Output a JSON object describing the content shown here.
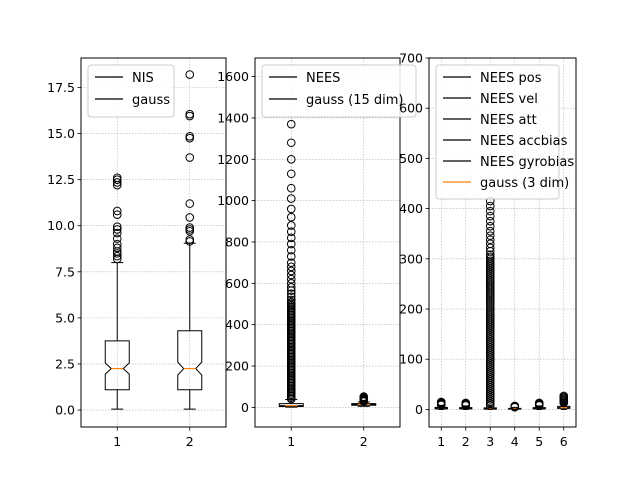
{
  "chart_data": [
    {
      "type": "box",
      "categories": [
        "1",
        "2"
      ],
      "ylim": [
        -0.92,
        19.1
      ],
      "yticks": [
        0.0,
        2.5,
        5.0,
        7.5,
        10.0,
        12.5,
        15.0,
        17.5
      ],
      "ytick_labels": [
        "0.0",
        "2.5",
        "5.0",
        "7.5",
        "10.0",
        "12.5",
        "15.0",
        "17.5"
      ],
      "grid": true,
      "notched": true,
      "legend": {
        "position": "top-left",
        "entries": [
          {
            "label": "NIS",
            "color": "#000000"
          },
          {
            "label": "gauss",
            "color": "#000000"
          }
        ]
      },
      "boxes": [
        {
          "category": "1",
          "whisker_low": 0.05,
          "q1": 1.1,
          "median": 2.25,
          "q3": 3.75,
          "whisker_high": 8.0,
          "notch_low": 1.95,
          "notch_high": 2.55,
          "fliers": [
            8.2,
            8.35,
            8.5,
            8.6,
            8.8,
            9.0,
            9.3,
            9.6,
            9.8,
            9.95,
            10.6,
            10.8,
            12.2,
            12.35,
            12.5,
            12.6
          ]
        },
        {
          "category": "2",
          "whisker_low": 0.05,
          "q1": 1.1,
          "median": 2.25,
          "q3": 4.3,
          "whisker_high": 9.05,
          "notch_low": 1.9,
          "notch_high": 2.6,
          "fliers": [
            9.15,
            9.25,
            9.7,
            9.8,
            9.9,
            10.45,
            11.2,
            13.7,
            14.75,
            14.85,
            15.95,
            16.05,
            18.2
          ]
        }
      ]
    },
    {
      "type": "box",
      "categories": [
        "1",
        "2"
      ],
      "ylim": [
        -95,
        1690
      ],
      "yticks": [
        0,
        200,
        400,
        600,
        800,
        1000,
        1200,
        1400,
        1600
      ],
      "ytick_labels": [
        "0",
        "200",
        "400",
        "600",
        "800",
        "1000",
        "1200",
        "1400",
        "1600"
      ],
      "grid": true,
      "notched": true,
      "legend": {
        "position": "top-left",
        "entries": [
          {
            "label": "NEES",
            "color": "#000000"
          },
          {
            "label": "gauss (15 dim)",
            "color": "#000000"
          }
        ]
      },
      "boxes": [
        {
          "category": "1",
          "whisker_low": 1,
          "q1": 4,
          "median": 8,
          "q3": 18,
          "whisker_high": 38,
          "notch_low": 7,
          "notch_high": 9,
          "flier_range": [
            40,
            510
          ],
          "flier_step": 7,
          "fliers": [
            520,
            535,
            550,
            565,
            580,
            600,
            620,
            640,
            660,
            680,
            700,
            730,
            760,
            790,
            820,
            850,
            880,
            920,
            960,
            1010,
            1060,
            1130,
            1200,
            1280,
            1370
          ]
        },
        {
          "category": "2",
          "whisker_low": 5,
          "q1": 10,
          "median": 14,
          "q3": 18,
          "whisker_high": 26,
          "notch_low": 13,
          "notch_high": 15,
          "fliers": [
            28,
            31,
            34,
            37,
            40,
            43,
            46,
            49,
            52
          ]
        }
      ]
    },
    {
      "type": "box",
      "categories": [
        "1",
        "2",
        "3",
        "4",
        "5",
        "6"
      ],
      "ylim": [
        -35,
        700
      ],
      "yticks": [
        0,
        100,
        200,
        300,
        400,
        500,
        600,
        700
      ],
      "ytick_labels": [
        "0",
        "100",
        "200",
        "300",
        "400",
        "500",
        "600",
        "700"
      ],
      "grid": true,
      "notched": true,
      "legend": {
        "position": "top-left",
        "entries": [
          {
            "label": "NEES pos",
            "color": "#000000"
          },
          {
            "label": "NEES vel",
            "color": "#000000"
          },
          {
            "label": "NEES att",
            "color": "#000000"
          },
          {
            "label": "NEES accbias",
            "color": "#000000"
          },
          {
            "label": "NEES gyrobias",
            "color": "#000000"
          },
          {
            "label": "gauss (3 dim)",
            "color": "#ff7f0e"
          }
        ]
      },
      "boxes": [
        {
          "category": "1",
          "whisker_low": 0,
          "q1": 1,
          "median": 2.5,
          "q3": 4,
          "whisker_high": 8,
          "notch_low": 2.2,
          "notch_high": 2.8,
          "fliers": [
            9,
            10,
            11,
            12,
            13,
            14,
            15
          ]
        },
        {
          "category": "2",
          "whisker_low": 0,
          "q1": 1,
          "median": 2,
          "q3": 3.5,
          "whisker_high": 7,
          "notch_low": 1.8,
          "notch_high": 2.2,
          "fliers": [
            8,
            9,
            10,
            11,
            12,
            13
          ]
        },
        {
          "category": "3",
          "whisker_low": 0,
          "q1": 0.5,
          "median": 1.5,
          "q3": 3,
          "whisker_high": 7,
          "notch_low": 1.3,
          "notch_high": 1.7,
          "flier_range": [
            8,
            310
          ],
          "flier_step": 4,
          "fliers": [
            315,
            322,
            330,
            338,
            346,
            355,
            365,
            375,
            385,
            395,
            405,
            415
          ]
        },
        {
          "category": "4",
          "whisker_low": 0,
          "q1": 0.5,
          "median": 1,
          "q3": 2,
          "whisker_high": 4,
          "notch_low": 0.9,
          "notch_high": 1.1,
          "fliers": [
            4.5,
            5,
            6,
            7
          ]
        },
        {
          "category": "5",
          "whisker_low": 0,
          "q1": 1,
          "median": 2,
          "q3": 3.5,
          "whisker_high": 7,
          "notch_low": 1.8,
          "notch_high": 2.2,
          "fliers": [
            8,
            9,
            10,
            11,
            12,
            13
          ]
        },
        {
          "category": "6",
          "whisker_low": 0,
          "q1": 2,
          "median": 3.5,
          "q3": 6,
          "whisker_high": 12,
          "notch_low": 3.2,
          "notch_high": 3.8,
          "fliers": [
            13,
            15,
            17,
            19,
            21,
            23,
            25,
            27
          ]
        }
      ]
    }
  ],
  "colors": {
    "median": "#ff7f0e",
    "box": "#000000",
    "grid": "#b0b0b0"
  }
}
